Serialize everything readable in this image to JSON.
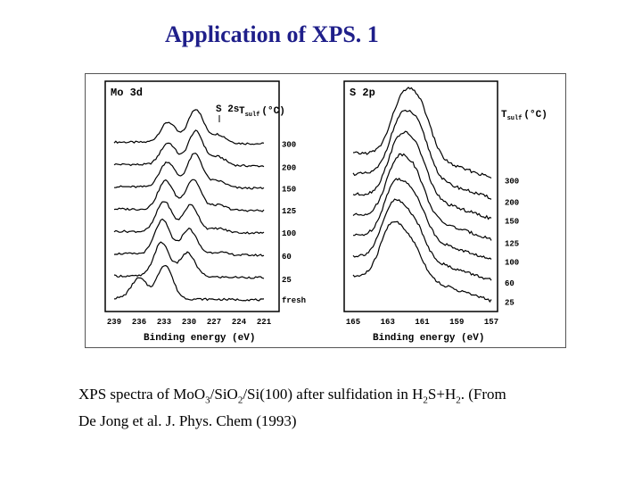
{
  "slide": {
    "title": "Application of XPS. 1"
  },
  "caption": {
    "part1": "XPS spectra of Mo",
    "o_sub": "O",
    "sub3": "3",
    "slash1": "/Si",
    "o2": "O",
    "sub2a": "2",
    "part2": "/Si(100) after sulfidation in H",
    "sub2b": "2",
    "part3": "S+H",
    "sub2c": "2",
    "part4": ". (From",
    "line2": "De Jong et al. J. Phys. Chem (1993)"
  },
  "chart_data": [
    {
      "type": "line",
      "panel_label": "Mo 3d",
      "peak_label": "S 2s",
      "legend_title": "T",
      "legend_sub": "sulf",
      "legend_unit": "(°C)",
      "xlabel": "Binding energy (eV)",
      "x_ticks": [
        "239",
        "236",
        "233",
        "230",
        "227",
        "224",
        "221"
      ],
      "xlim": [
        239,
        221
      ],
      "series": [
        {
          "name": "300",
          "peaks": [
            {
              "x": 232.5,
              "h": 0.6
            },
            {
              "x": 229.2,
              "h": 1.0
            },
            {
              "x": 226.5,
              "h": 0.25
            }
          ]
        },
        {
          "name": "200",
          "peaks": [
            {
              "x": 232.5,
              "h": 0.65
            },
            {
              "x": 229.2,
              "h": 1.0
            },
            {
              "x": 226.5,
              "h": 0.25
            }
          ]
        },
        {
          "name": "150",
          "peaks": [
            {
              "x": 232.6,
              "h": 0.75
            },
            {
              "x": 229.3,
              "h": 1.0
            },
            {
              "x": 226.5,
              "h": 0.2
            }
          ]
        },
        {
          "name": "125",
          "peaks": [
            {
              "x": 232.8,
              "h": 0.85
            },
            {
              "x": 229.5,
              "h": 0.9
            },
            {
              "x": 226.5,
              "h": 0.15
            }
          ]
        },
        {
          "name": "100",
          "peaks": [
            {
              "x": 233.0,
              "h": 0.9
            },
            {
              "x": 229.8,
              "h": 0.8
            },
            {
              "x": 226.5,
              "h": 0.12
            }
          ]
        },
        {
          "name": "60",
          "peaks": [
            {
              "x": 233.2,
              "h": 1.0
            },
            {
              "x": 230.0,
              "h": 0.75
            },
            {
              "x": 226.5,
              "h": 0.08
            }
          ]
        },
        {
          "name": "25",
          "peaks": [
            {
              "x": 233.3,
              "h": 1.0
            },
            {
              "x": 230.2,
              "h": 0.7
            }
          ]
        },
        {
          "name": "fresh",
          "peaks": [
            {
              "x": 236.0,
              "h": 0.6
            },
            {
              "x": 232.9,
              "h": 1.0
            }
          ]
        }
      ]
    },
    {
      "type": "line",
      "panel_label": "S 2p",
      "legend_title": "T",
      "legend_sub": "sulf",
      "legend_unit": "(°C)",
      "xlabel": "Binding energy (eV)",
      "x_ticks": [
        "165",
        "163",
        "161",
        "159",
        "157"
      ],
      "xlim": [
        165,
        157
      ],
      "series": [
        {
          "name": "300",
          "peaks": [
            {
              "x": 162.2,
              "h": 1.0
            },
            {
              "x": 161.1,
              "h": 0.9
            }
          ]
        },
        {
          "name": "200",
          "peaks": [
            {
              "x": 162.3,
              "h": 1.0
            },
            {
              "x": 161.2,
              "h": 0.85
            }
          ]
        },
        {
          "name": "150",
          "peaks": [
            {
              "x": 162.4,
              "h": 1.0
            },
            {
              "x": 161.3,
              "h": 0.8
            }
          ]
        },
        {
          "name": "125",
          "peaks": [
            {
              "x": 162.5,
              "h": 1.0
            },
            {
              "x": 161.4,
              "h": 0.75
            }
          ]
        },
        {
          "name": "100",
          "peaks": [
            {
              "x": 162.6,
              "h": 1.0
            },
            {
              "x": 161.4,
              "h": 0.7
            }
          ]
        },
        {
          "name": "60",
          "peaks": [
            {
              "x": 162.7,
              "h": 1.0
            },
            {
              "x": 161.5,
              "h": 0.65
            }
          ]
        },
        {
          "name": "25",
          "peaks": [
            {
              "x": 162.8,
              "h": 1.0
            },
            {
              "x": 161.6,
              "h": 0.6
            }
          ]
        }
      ]
    }
  ]
}
